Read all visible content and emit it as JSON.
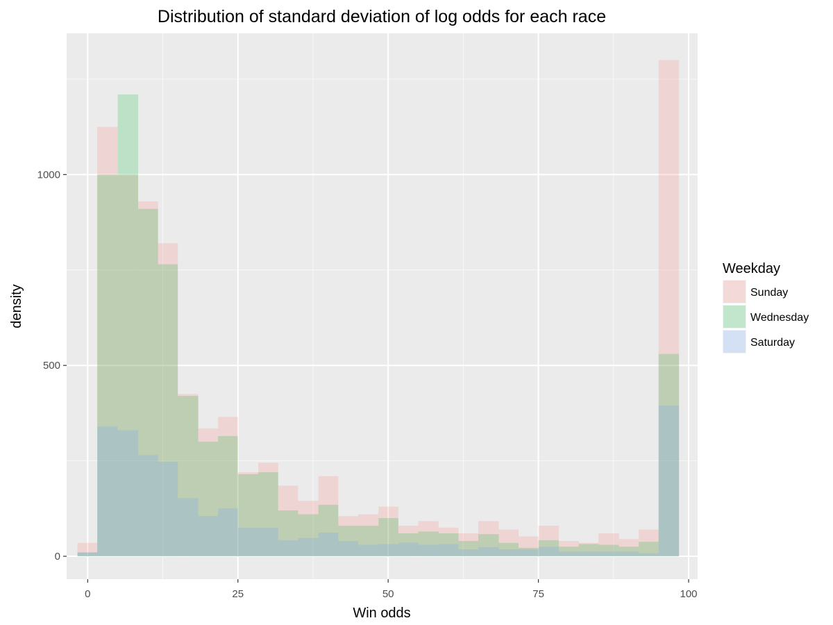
{
  "chart_data": {
    "type": "bar",
    "title": "Distribution of standard deviation of log odds for each race",
    "xlabel": "Win odds",
    "ylabel": "density",
    "xlim": [
      -3.5,
      101.5
    ],
    "ylim": [
      -60,
      1370
    ],
    "x_ticks": [
      0,
      25,
      50,
      75,
      100
    ],
    "x_tick_labels": [
      "0",
      "25",
      "50",
      "75",
      "100"
    ],
    "y_ticks": [
      0,
      500,
      1000
    ],
    "y_tick_labels": [
      "0",
      "500",
      "1000"
    ],
    "grid": true,
    "bin_edges": [
      -1.7,
      1.6,
      5,
      8.4,
      11.7,
      15,
      18.4,
      21.7,
      25,
      28.4,
      31.7,
      35,
      38.4,
      41.7,
      45,
      48.4,
      51.7,
      55,
      58.4,
      61.7,
      65,
      68.4,
      71.7,
      75,
      78.4,
      81.7,
      85,
      88.4,
      91.7,
      95,
      98.4
    ],
    "legend": {
      "title": "Weekday",
      "position": "right"
    },
    "series": [
      {
        "name": "Sunday",
        "color": "#F8766D",
        "values": [
          35,
          1125,
          1000,
          930,
          820,
          425,
          335,
          365,
          220,
          245,
          185,
          145,
          210,
          105,
          110,
          130,
          80,
          92,
          75,
          60,
          92,
          70,
          52,
          80,
          40,
          35,
          60,
          45,
          70,
          1300
        ]
      },
      {
        "name": "Wednesday",
        "color": "#00BA38",
        "values": [
          10,
          1000,
          1210,
          910,
          765,
          420,
          300,
          315,
          215,
          220,
          120,
          110,
          135,
          80,
          80,
          100,
          60,
          65,
          60,
          40,
          58,
          35,
          22,
          42,
          25,
          32,
          30,
          25,
          38,
          530
        ]
      },
      {
        "name": "Saturday",
        "color": "#619CFF",
        "values": [
          10,
          340,
          330,
          265,
          248,
          152,
          105,
          125,
          75,
          75,
          42,
          48,
          62,
          40,
          30,
          32,
          36,
          30,
          32,
          18,
          24,
          18,
          18,
          25,
          12,
          12,
          12,
          12,
          8,
          395
        ]
      }
    ]
  }
}
